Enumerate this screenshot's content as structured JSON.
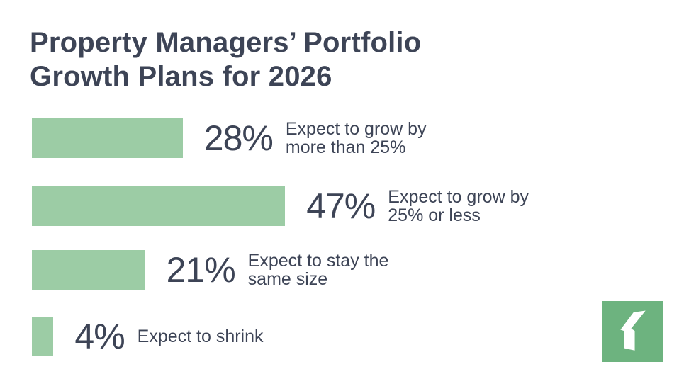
{
  "chart_data": {
    "type": "bar",
    "orientation": "horizontal",
    "title": "Property Managers’ Portfolio Growth Plans for 2026",
    "categories": [
      "Expect to grow by more than 25%",
      "Expect to grow by 25% or less",
      "Expect to stay the same size",
      "Expect to shrink"
    ],
    "values": [
      28,
      47,
      21,
      4
    ],
    "value_labels": [
      "28%",
      "47%",
      "21%",
      "4%"
    ],
    "bar_color": "#9ccca5",
    "grid": false
  },
  "logo": {
    "color": "#6db37f",
    "icon": "brand-logo"
  }
}
